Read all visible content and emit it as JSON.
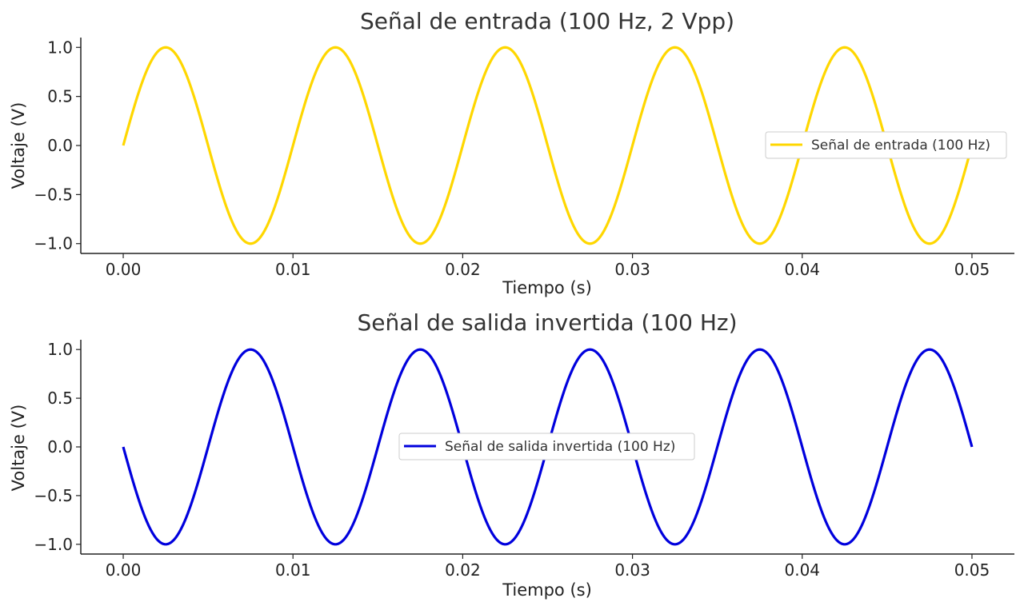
{
  "chart_data": [
    {
      "type": "line",
      "title": "Señal de entrada (100 Hz, 2 Vpp)",
      "xlabel": "Tiempo (s)",
      "ylabel": "Voltaje (V)",
      "xlim": [
        -0.0025,
        0.0525
      ],
      "ylim": [
        -1.1,
        1.1
      ],
      "xticks": [
        0.0,
        0.01,
        0.02,
        0.03,
        0.04,
        0.05
      ],
      "xtick_labels": [
        "0.00",
        "0.01",
        "0.02",
        "0.03",
        "0.04",
        "0.05"
      ],
      "yticks": [
        1.0,
        0.5,
        0.0,
        -0.5,
        -1.0
      ],
      "ytick_labels": [
        "1.0",
        "0.5",
        "0.0",
        "−0.5",
        "−1.0"
      ],
      "legend_position": "right",
      "grid": false,
      "series": [
        {
          "name": "Señal de entrada (100 Hz)",
          "color": "#FFD700",
          "x": [
            0.0,
            0.0025,
            0.005,
            0.0075,
            0.01,
            0.0125,
            0.015,
            0.0175,
            0.02,
            0.0225,
            0.025,
            0.0275,
            0.03,
            0.0325,
            0.035,
            0.0375,
            0.04,
            0.0425,
            0.045,
            0.0475,
            0.05
          ],
          "y": [
            0.0,
            1.0,
            0.0,
            -1.0,
            0.0,
            1.0,
            0.0,
            -1.0,
            0.0,
            1.0,
            0.0,
            -1.0,
            0.0,
            1.0,
            0.0,
            -1.0,
            0.0,
            1.0,
            0.0,
            -1.0,
            0.0
          ]
        }
      ]
    },
    {
      "type": "line",
      "title": "Señal de salida invertida (100 Hz)",
      "xlabel": "Tiempo (s)",
      "ylabel": "Voltaje (V)",
      "xlim": [
        -0.0025,
        0.0525
      ],
      "ylim": [
        -1.1,
        1.1
      ],
      "xticks": [
        0.0,
        0.01,
        0.02,
        0.03,
        0.04,
        0.05
      ],
      "xtick_labels": [
        "0.00",
        "0.01",
        "0.02",
        "0.03",
        "0.04",
        "0.05"
      ],
      "yticks": [
        1.0,
        0.5,
        0.0,
        -0.5,
        -1.0
      ],
      "ytick_labels": [
        "1.0",
        "0.5",
        "0.0",
        "−0.5",
        "−1.0"
      ],
      "legend_position": "center",
      "grid": false,
      "series": [
        {
          "name": "Señal de salida invertida (100 Hz)",
          "color": "#0000DD",
          "x": [
            0.0,
            0.0025,
            0.005,
            0.0075,
            0.01,
            0.0125,
            0.015,
            0.0175,
            0.02,
            0.0225,
            0.025,
            0.0275,
            0.03,
            0.0325,
            0.035,
            0.0375,
            0.04,
            0.0425,
            0.045,
            0.0475,
            0.05
          ],
          "y": [
            0.0,
            -1.0,
            0.0,
            1.0,
            0.0,
            -1.0,
            0.0,
            1.0,
            0.0,
            -1.0,
            0.0,
            1.0,
            0.0,
            -1.0,
            0.0,
            1.0,
            0.0,
            -1.0,
            0.0,
            1.0,
            0.0
          ]
        }
      ]
    }
  ]
}
